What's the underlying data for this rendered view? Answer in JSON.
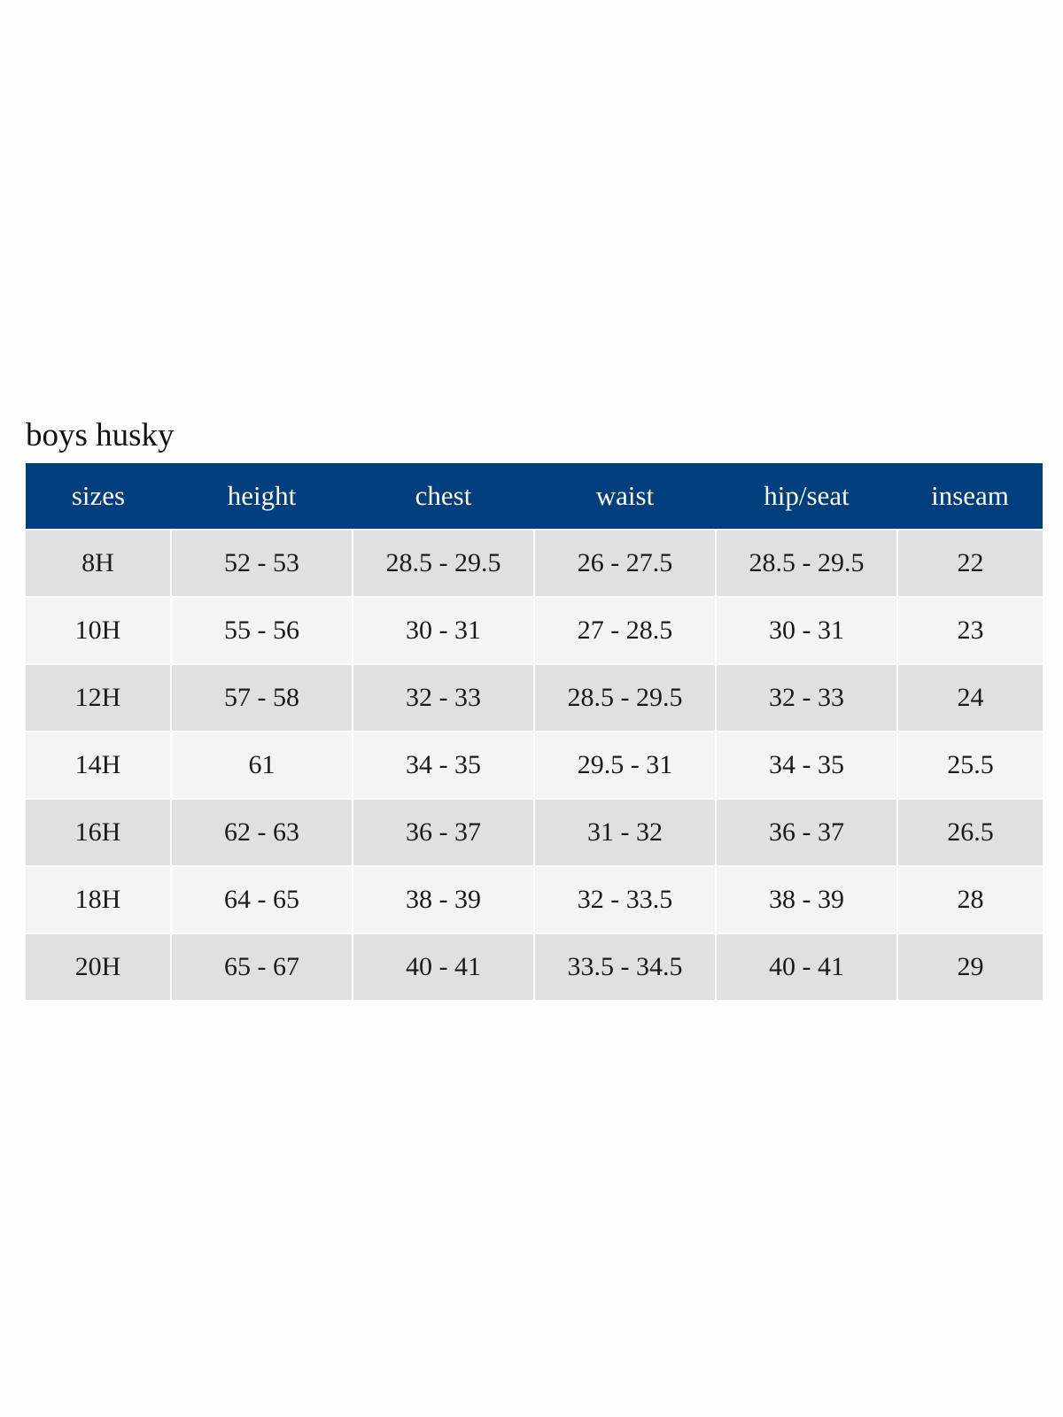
{
  "title": "boys husky",
  "colors": {
    "header_bg": "#003e7e",
    "row_dark": "#e0e0e0",
    "row_light": "#f4f4f4"
  },
  "table": {
    "headers": [
      "sizes",
      "height",
      "chest",
      "waist",
      "hip/seat",
      "inseam"
    ],
    "rows": [
      [
        "8H",
        "52 - 53",
        "28.5 - 29.5",
        "26 - 27.5",
        "28.5 - 29.5",
        "22"
      ],
      [
        "10H",
        "55 - 56",
        "30 - 31",
        "27 - 28.5",
        "30 - 31",
        "23"
      ],
      [
        "12H",
        "57 - 58",
        "32 - 33",
        "28.5 - 29.5",
        "32 - 33",
        "24"
      ],
      [
        "14H",
        "61",
        "34 - 35",
        "29.5 - 31",
        "34 - 35",
        "25.5"
      ],
      [
        "16H",
        "62 - 63",
        "36 - 37",
        "31 - 32",
        "36 - 37",
        "26.5"
      ],
      [
        "18H",
        "64 - 65",
        "38 - 39",
        "32 - 33.5",
        "38 - 39",
        "28"
      ],
      [
        "20H",
        "65 - 67",
        "40 - 41",
        "33.5 - 34.5",
        "40 - 41",
        "29"
      ]
    ]
  }
}
